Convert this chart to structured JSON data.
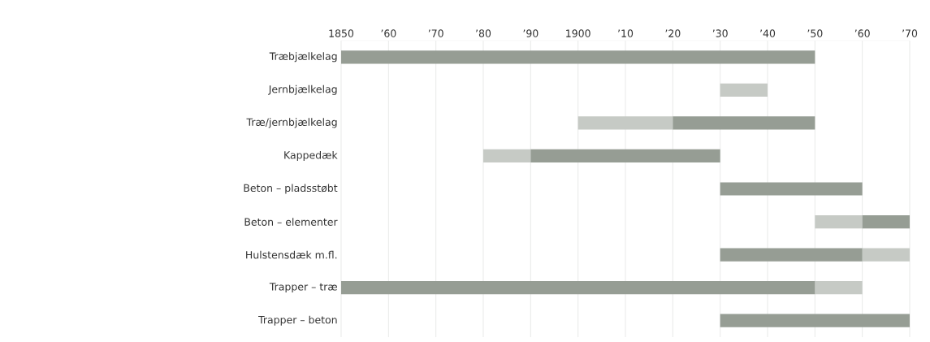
{
  "chart_data": {
    "type": "bar",
    "orientation": "horizontal",
    "categories": [
      "Træbjælkelag",
      "Jernbjælkelag",
      "Træ/jernbjælkelag",
      "Kappedæk",
      "Beton – pladsstøbt",
      "Beton – elementer",
      "Hulstensdæk m.fl.",
      "Trapper – træ",
      "Trapper – beton"
    ],
    "series": [
      {
        "color": "#c6cac5",
        "base": [
          null,
          1930,
          1900,
          1880,
          null,
          1950,
          1960,
          1950,
          null
        ],
        "values": [
          null,
          10,
          20,
          10,
          null,
          10,
          10,
          10,
          null
        ]
      },
      {
        "color": "#969d94",
        "base": [
          1850,
          null,
          1920,
          1890,
          1930,
          1960,
          1930,
          1850,
          1930
        ],
        "values": [
          100,
          null,
          30,
          40,
          30,
          10,
          30,
          100,
          40
        ]
      }
    ],
    "xlim": [
      1850,
      1970
    ],
    "xticks": [
      {
        "value": 1850,
        "label": "1850"
      },
      {
        "value": 1860,
        "label": "’60"
      },
      {
        "value": 1870,
        "label": "’70"
      },
      {
        "value": 1880,
        "label": "’80"
      },
      {
        "value": 1890,
        "label": "’90"
      },
      {
        "value": 1900,
        "label": "1900"
      },
      {
        "value": 1910,
        "label": "’10"
      },
      {
        "value": 1920,
        "label": "’20"
      },
      {
        "value": 1930,
        "label": "’30"
      },
      {
        "value": 1940,
        "label": "’40"
      },
      {
        "value": 1950,
        "label": "’50"
      },
      {
        "value": 1960,
        "label": "’60"
      },
      {
        "value": 1970,
        "label": "’70"
      }
    ],
    "grid": "x"
  }
}
